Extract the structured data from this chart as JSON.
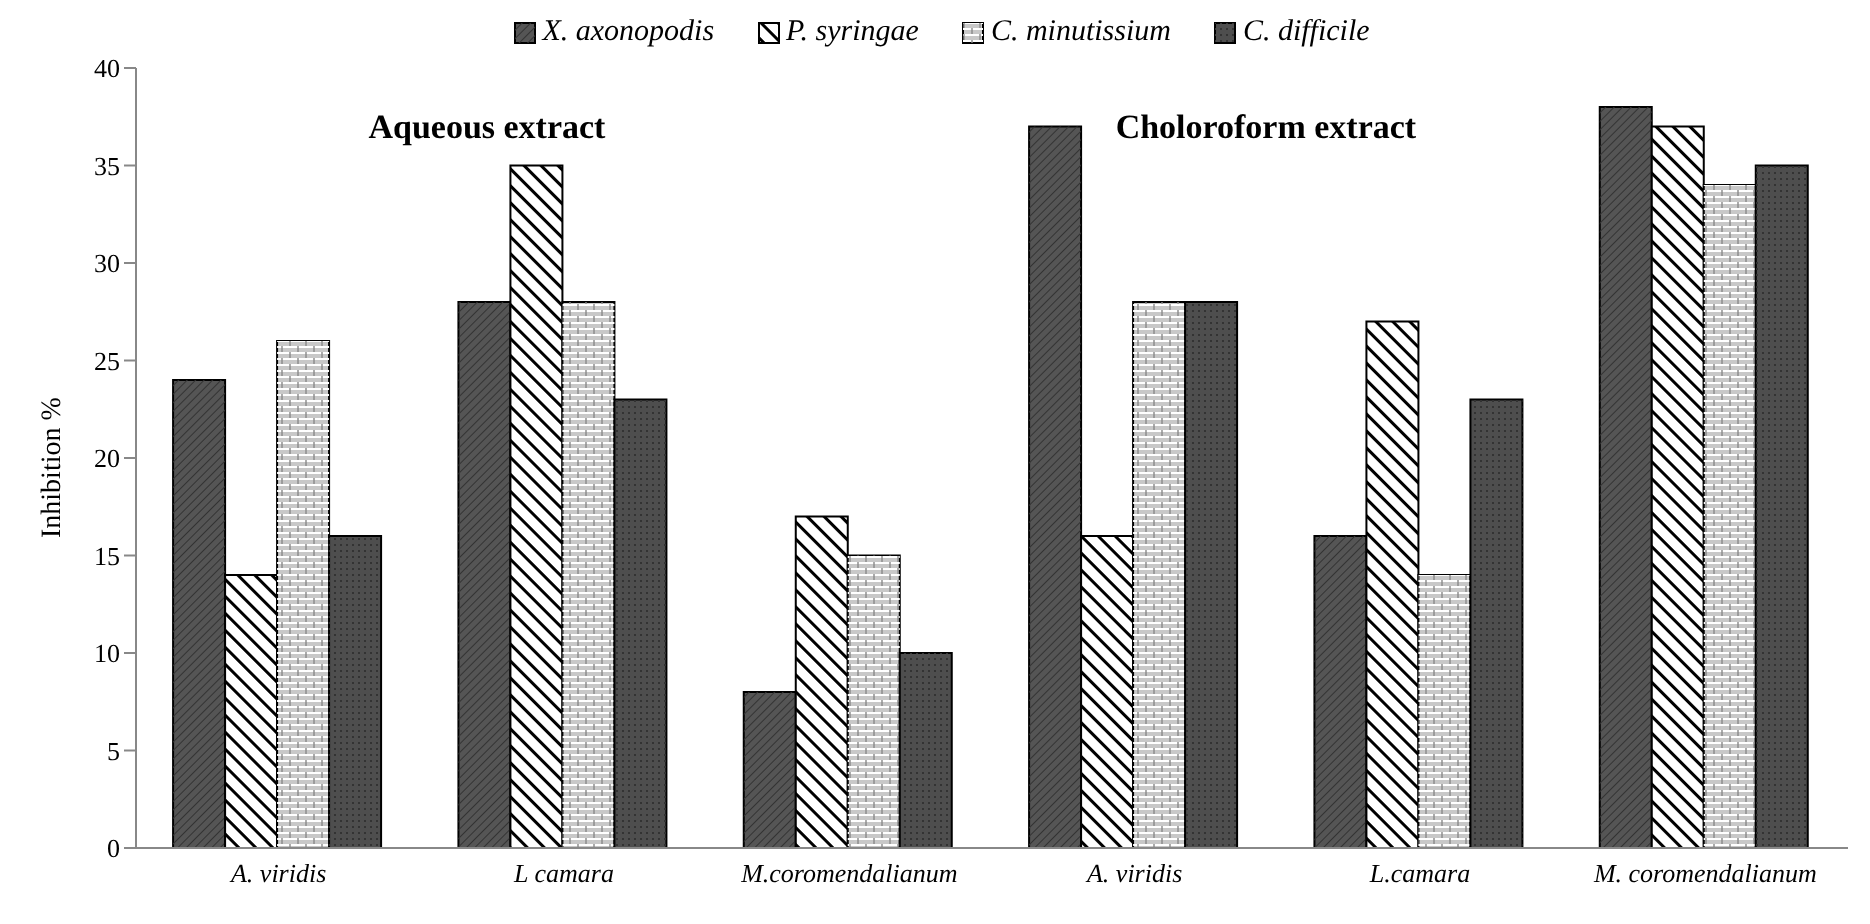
{
  "chart_data": {
    "type": "bar",
    "ylabel": "Inhibition %",
    "categories": [
      "A. viridis",
      "L camara",
      "M.coromendalianum",
      "A. viridis",
      "L.camara",
      "M. coromendalianum"
    ],
    "series": [
      {
        "name": "X. axonopodis",
        "color": "#555555",
        "values": [
          24,
          28,
          8,
          37,
          16,
          38
        ]
      },
      {
        "name": "P. syringae",
        "color": "#ffffff",
        "values": [
          14,
          35,
          17,
          16,
          27,
          37
        ]
      },
      {
        "name": "C. minutissium",
        "color": "#c8c8c8",
        "values": [
          26,
          28,
          15,
          28,
          14,
          34
        ]
      },
      {
        "name": "C. difficile",
        "color": "#4e4e4e",
        "values": [
          16,
          23,
          10,
          28,
          23,
          35
        ]
      }
    ],
    "annotations": [
      "Aqueous extract",
      "Choloroform extract"
    ],
    "ylim": [
      0,
      40
    ],
    "yticks": [
      0,
      5,
      10,
      15,
      20,
      25,
      30,
      35,
      40
    ],
    "grid": false,
    "legend": "top"
  }
}
